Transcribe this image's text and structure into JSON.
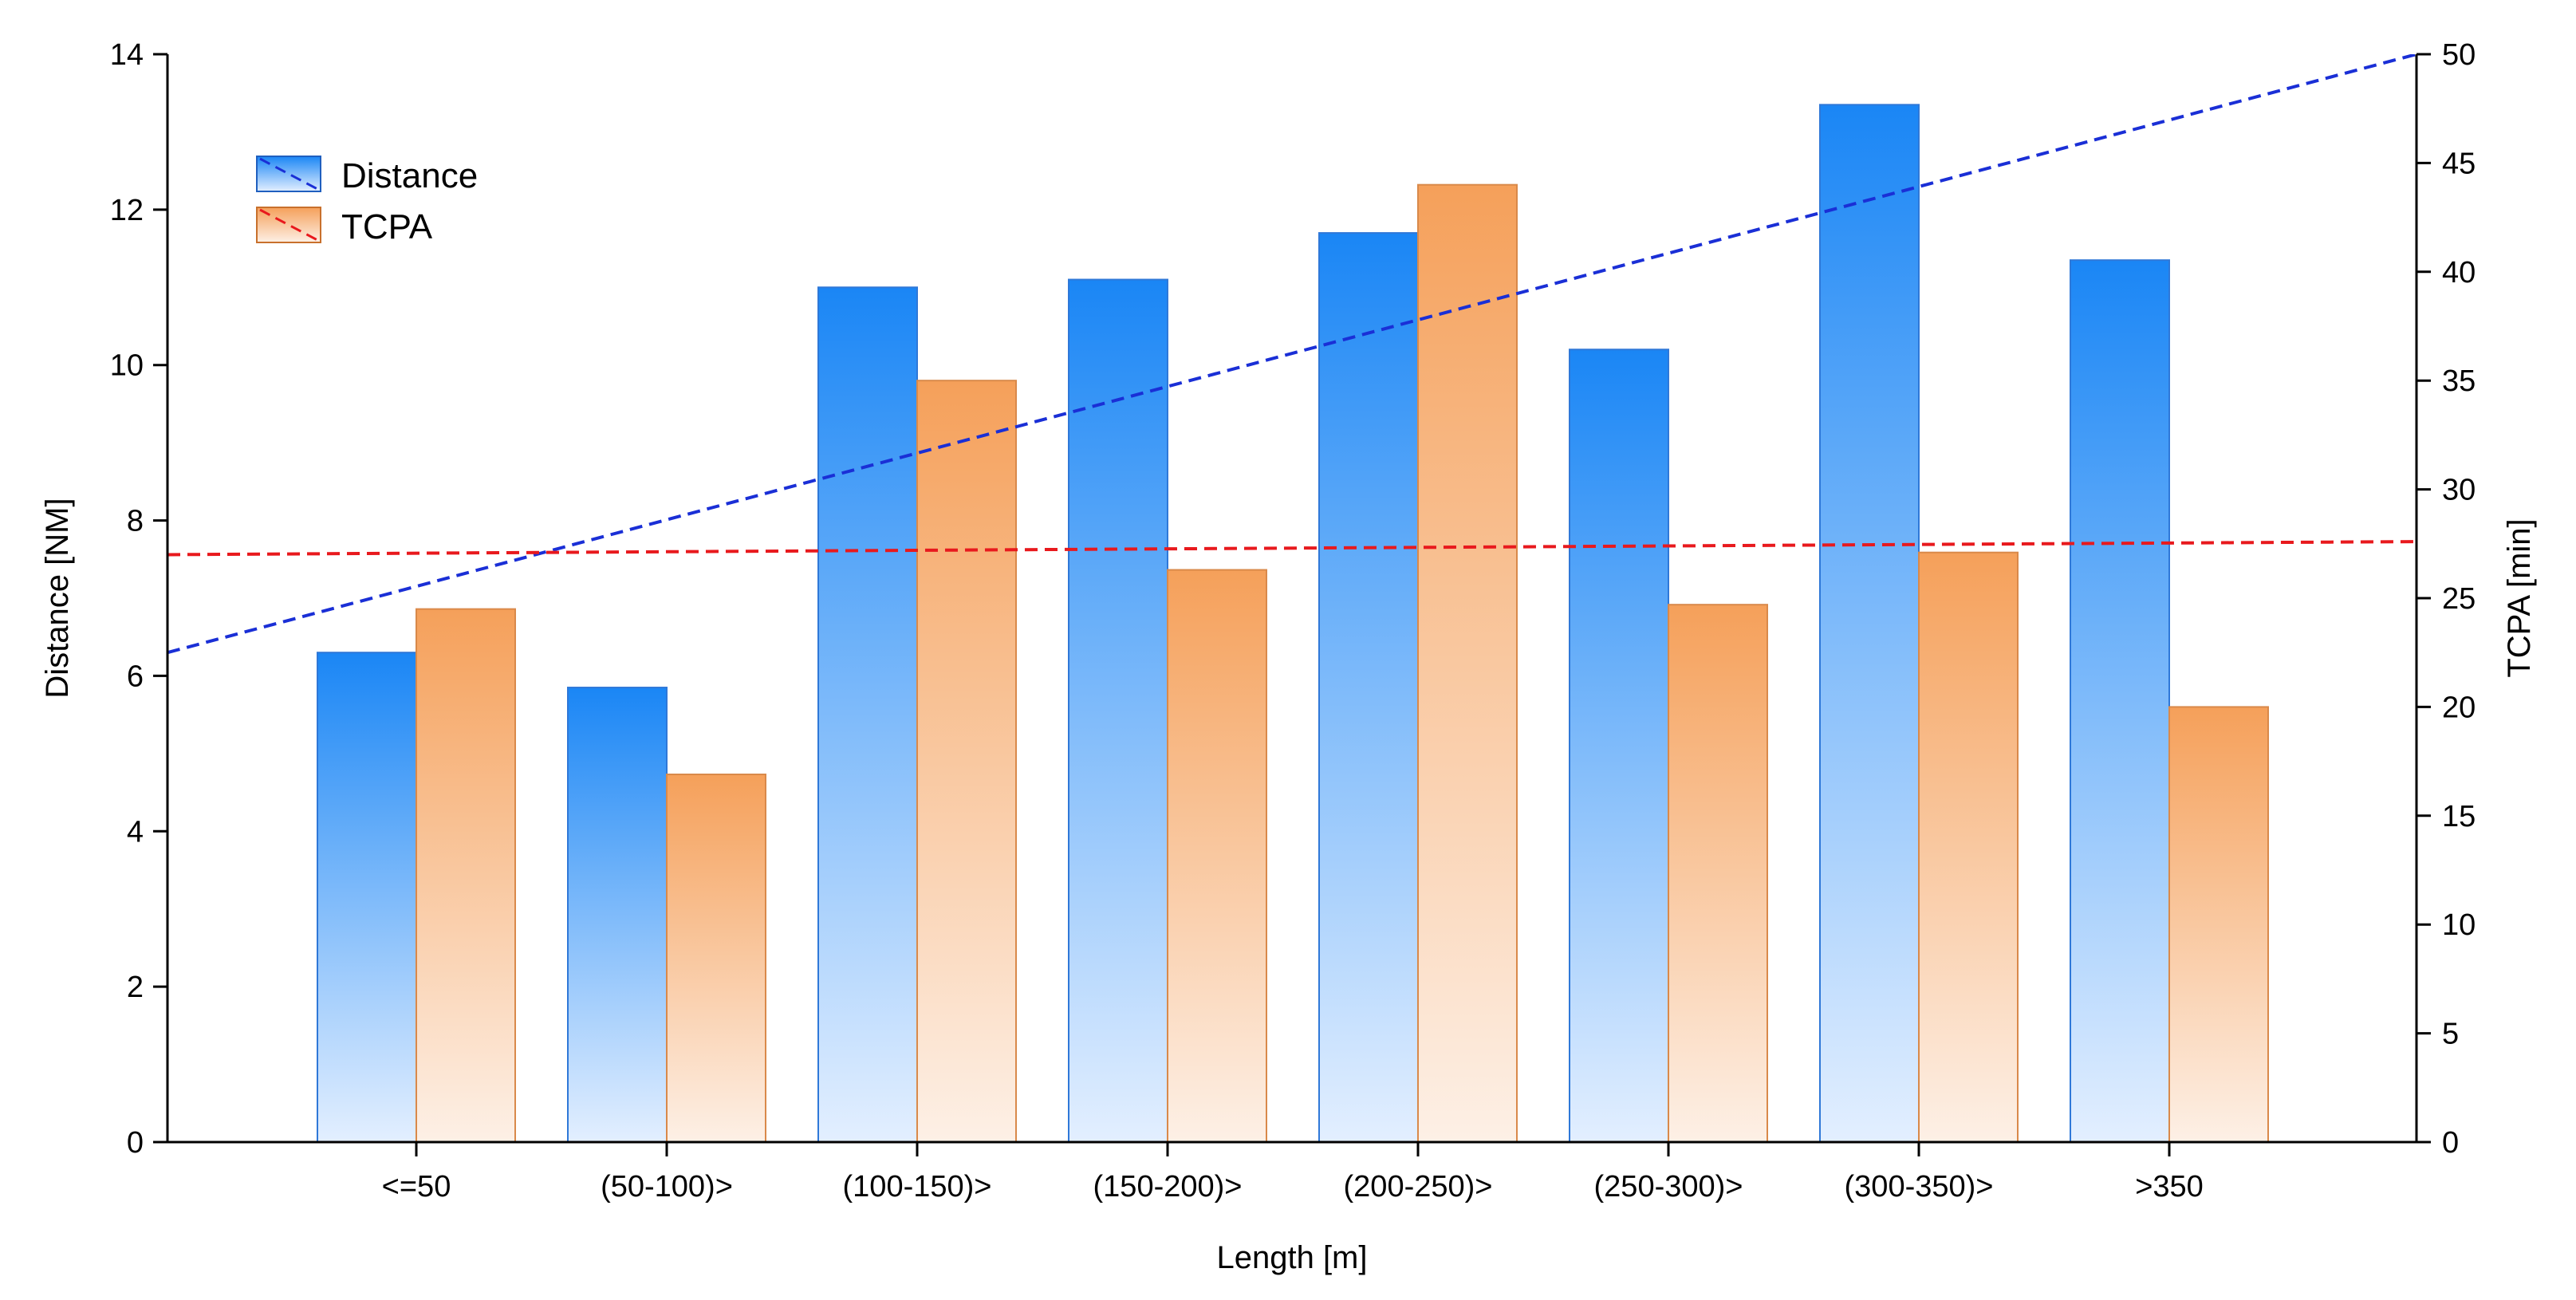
{
  "chart_data": {
    "type": "bar",
    "title": "",
    "xlabel": "Length [m]",
    "ylabel": "Distance [NM]",
    "y2label": "TCPA [min]",
    "categories": [
      "<=50",
      "(50-100)>",
      "(100-150)>",
      "(150-200)>",
      "(200-250)>",
      "(250-300)>",
      "(300-350)>",
      ">350"
    ],
    "ylim": [
      0,
      14
    ],
    "y2lim": [
      0,
      50
    ],
    "yticks": [
      "0",
      "2",
      "4",
      "6",
      "8",
      "10",
      "12",
      "14"
    ],
    "y2ticks": [
      "0",
      "5",
      "10",
      "15",
      "20",
      "25",
      "30",
      "35",
      "40",
      "45",
      "50"
    ],
    "legend_position": "top-left",
    "grid": false,
    "series": [
      {
        "name": "Distance",
        "axis": "left",
        "color": "#1a86f5",
        "light_color": "#e3efff",
        "values": [
          6.3,
          5.85,
          11.0,
          11.1,
          11.7,
          10.2,
          13.35,
          11.35
        ],
        "trend": {
          "type": "dashed-line",
          "color": "#1a2fd6",
          "start": 6.3,
          "end": 14.0
        }
      },
      {
        "name": "TCPA",
        "axis": "right",
        "color": "#f5a05a",
        "light_color": "#fdf0e6",
        "values": [
          24.5,
          16.9,
          35.0,
          26.3,
          44.0,
          24.7,
          27.1,
          20.0
        ],
        "trend": {
          "type": "dashed-line",
          "color": "#e8191d",
          "start": 27.0,
          "end": 27.6
        }
      }
    ]
  }
}
